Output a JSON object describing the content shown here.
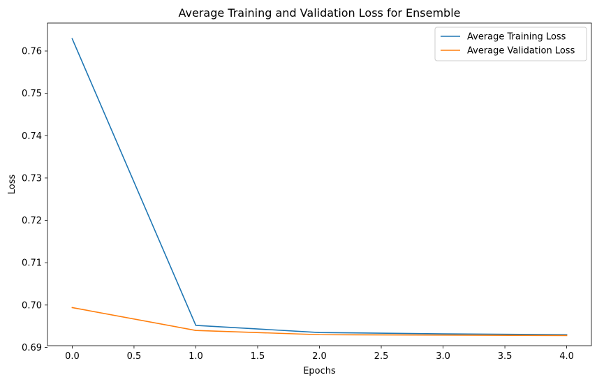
{
  "chart_data": {
    "type": "line",
    "title": "Average Training and Validation Loss for Ensemble",
    "xlabel": "Epochs",
    "ylabel": "Loss",
    "x": [
      0,
      1,
      2,
      3,
      4
    ],
    "series": [
      {
        "name": "Average Training Loss",
        "color": "#1f77b4",
        "values": [
          0.7629,
          0.6952,
          0.6935,
          0.6932,
          0.693
        ]
      },
      {
        "name": "Average Validation Loss",
        "color": "#ff7f0e",
        "values": [
          0.6994,
          0.694,
          0.693,
          0.6929,
          0.6928
        ]
      }
    ],
    "xlim": [
      -0.2,
      4.2
    ],
    "ylim": [
      0.6904,
      0.7666
    ],
    "xticks": [
      0.0,
      0.5,
      1.0,
      1.5,
      2.0,
      2.5,
      3.0,
      3.5,
      4.0
    ],
    "xtick_labels": [
      "0.0",
      "0.5",
      "1.0",
      "1.5",
      "2.0",
      "2.5",
      "3.0",
      "3.5",
      "4.0"
    ],
    "yticks": [
      0.69,
      0.7,
      0.71,
      0.72,
      0.73,
      0.74,
      0.75,
      0.76
    ],
    "ytick_labels": [
      "0.69",
      "0.70",
      "0.71",
      "0.72",
      "0.73",
      "0.74",
      "0.75",
      "0.76"
    ],
    "grid": false,
    "legend_position": "top-right"
  }
}
